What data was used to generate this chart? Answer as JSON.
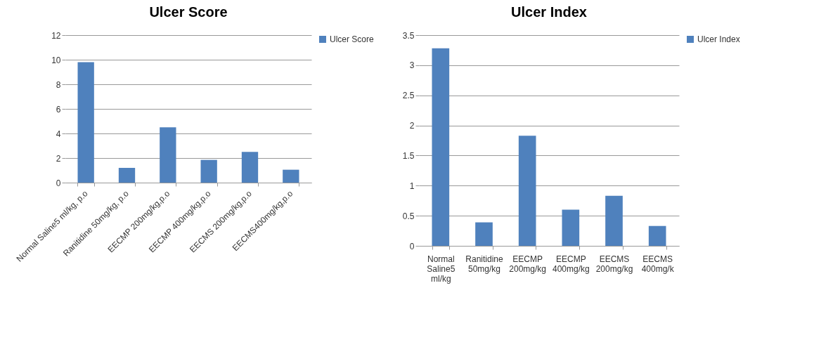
{
  "chart_data": [
    {
      "type": "bar",
      "title": "Ulcer Score",
      "categories": [
        "Normal Saline5 ml/kg, p.o",
        "Ranitidine 50mg/kg, p.o",
        "EECMP 200mg/kg,p.o",
        "EECMP 400mg/kg,p.o",
        "EECMS 200mg/kg,p.o",
        "EECMS400mg/kg,p.o"
      ],
      "series": [
        {
          "name": "Ulcer Score",
          "color": "#4f81bd",
          "values": [
            9.8,
            1.2,
            4.5,
            1.85,
            2.5,
            1.05
          ]
        }
      ],
      "ylim": [
        0,
        12
      ],
      "yticks": [
        0,
        2,
        4,
        6,
        8,
        10,
        12
      ],
      "grid": "y",
      "legend": "right"
    },
    {
      "type": "bar",
      "title": "Ulcer Index",
      "categories": [
        "Normal Saline5 ml/kg",
        "Ranitidine 50mg/kg",
        "EECMP 200mg/kg",
        "EECMP 400mg/kg",
        "EECMS 200mg/kg",
        "EECMS 400mg/k"
      ],
      "series": [
        {
          "name": "Ulcer Index",
          "color": "#4f81bd",
          "values": [
            3.28,
            0.39,
            1.83,
            0.6,
            0.83,
            0.33
          ]
        }
      ],
      "ylim": [
        0,
        3.5
      ],
      "yticks": [
        0,
        0.5,
        1,
        1.5,
        2,
        2.5,
        3,
        3.5
      ],
      "grid": "y",
      "legend": "right"
    }
  ]
}
